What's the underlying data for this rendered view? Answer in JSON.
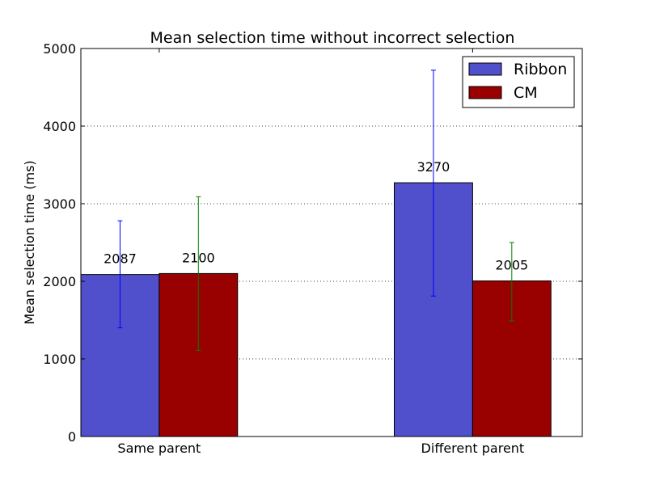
{
  "chart_data": {
    "type": "bar",
    "title": "Mean selection time without incorrect selection",
    "xlabel": "",
    "ylabel": "Mean selection time (ms)",
    "ylim": [
      0,
      5000
    ],
    "yticks": [
      "0",
      "1000",
      "2000",
      "3000",
      "4000",
      "5000"
    ],
    "categories": [
      "Same parent",
      "Different parent"
    ],
    "grid": "y-dotted",
    "legend_position": "top-right",
    "series": [
      {
        "name": "Ribbon",
        "color": "#5050cc",
        "error_color": "#0000ff",
        "values": [
          2087,
          3270
        ],
        "errors": [
          [
            1400,
            2780
          ],
          [
            1810,
            4720
          ]
        ],
        "labels": [
          "2087",
          "3270"
        ]
      },
      {
        "name": "CM",
        "color": "#990000",
        "error_color": "#008000",
        "values": [
          2100,
          2005
        ],
        "errors": [
          [
            1110,
            3090
          ],
          [
            1490,
            2500
          ]
        ],
        "labels": [
          "2100",
          "2005"
        ]
      }
    ]
  }
}
